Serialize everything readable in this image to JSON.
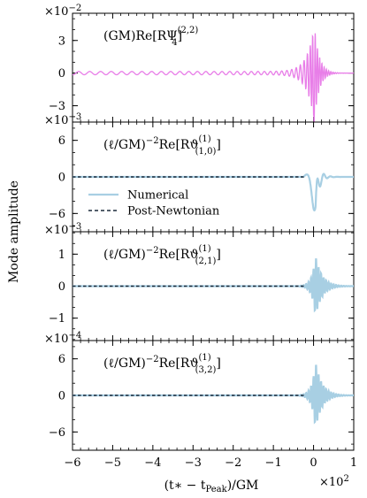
{
  "figure": {
    "ylabel": "Mode amplitude",
    "xlabel": "(t∗ − t",
    "xlabel_sub": "Peak",
    "xlabel_tail": ")/GM",
    "x_exponent": "×10",
    "x_exponent_power": "2"
  },
  "colors": {
    "psi4": "#e87ee8",
    "numerical": "#a8cfe3",
    "post_newtonian": "#1a2a3a",
    "axes": "#000000"
  },
  "legend": {
    "placement": "inside-left of panel 2",
    "numerical_label": "Numerical",
    "pn_label": "Post-Newtonian"
  },
  "chart_data": [
    {
      "type": "line",
      "panel": 1,
      "label_pre": "(GM)Re[RΨ",
      "label_sub": "4",
      "label_sup": "(2,2)",
      "label_post": "]",
      "exponent": "×10",
      "exponent_power": "−2",
      "xlim": [
        -6,
        1
      ],
      "ylim": [
        -4.5,
        5.5
      ],
      "yticks": [
        -3,
        0,
        3
      ],
      "yticklabels": [
        "−3",
        "0",
        "3"
      ],
      "series": [
        {
          "style": "psi4",
          "peak_amp": 5.2,
          "early_amp": 0.15,
          "shape": "chirp"
        }
      ]
    },
    {
      "type": "line",
      "panel": 2,
      "label_pre": "(ℓ/GM)",
      "label_pow": "−2",
      "label_mid": "Re[Rϑ",
      "label_sub": "(1,0)",
      "label_sup": "(1)",
      "label_post": "]",
      "exponent": "×10",
      "exponent_power": "−3",
      "xlim": [
        -6,
        1
      ],
      "ylim": [
        -9,
        9
      ],
      "yticks": [
        -6,
        0,
        6
      ],
      "yticklabels": [
        "−6",
        "0",
        "6"
      ],
      "series": [
        {
          "name": "Numerical",
          "style": "numerical",
          "peak_amp": 5.5,
          "shape": "dip"
        },
        {
          "name": "Post-Newtonian",
          "style": "post_newtonian",
          "end": -0.2
        }
      ]
    },
    {
      "type": "line",
      "panel": 3,
      "label_pre": "(ℓ/GM)",
      "label_pow": "−2",
      "label_mid": "Re[Rϑ",
      "label_sub": "(2,1)",
      "label_sup": "(1)",
      "label_post": "]",
      "exponent": "×10",
      "exponent_power": "−3",
      "xlim": [
        -6,
        1
      ],
      "ylim": [
        -1.7,
        1.7
      ],
      "yticks": [
        -1,
        0,
        1
      ],
      "yticklabels": [
        "−1",
        "0",
        "1"
      ],
      "series": [
        {
          "name": "Numerical",
          "style": "numerical",
          "peak_amp": 0.95,
          "shape": "chirp"
        },
        {
          "name": "Post-Newtonian",
          "style": "post_newtonian",
          "end": -0.2
        }
      ]
    },
    {
      "type": "line",
      "panel": 4,
      "label_pre": "(ℓ/GM)",
      "label_pow": "−2",
      "label_mid": "Re[Rϑ",
      "label_sub": "(3,2)",
      "label_sup": "(1)",
      "label_post": "]",
      "exponent": "×10",
      "exponent_power": "−4",
      "xlim": [
        -6,
        1
      ],
      "ylim": [
        -9,
        9
      ],
      "yticks": [
        -6,
        0,
        6
      ],
      "yticklabels": [
        "−6",
        "0",
        "6"
      ],
      "series": [
        {
          "name": "Numerical",
          "style": "numerical",
          "peak_amp": 5.5,
          "shape": "chirp"
        },
        {
          "name": "Post-Newtonian",
          "style": "post_newtonian",
          "end": -0.2
        }
      ]
    }
  ],
  "xticks": [
    -6,
    -5,
    -4,
    -3,
    -2,
    -1,
    0,
    1
  ],
  "xticklabels": [
    "−6",
    "−5",
    "−4",
    "−3",
    "−2",
    "−1",
    "0",
    "1"
  ]
}
